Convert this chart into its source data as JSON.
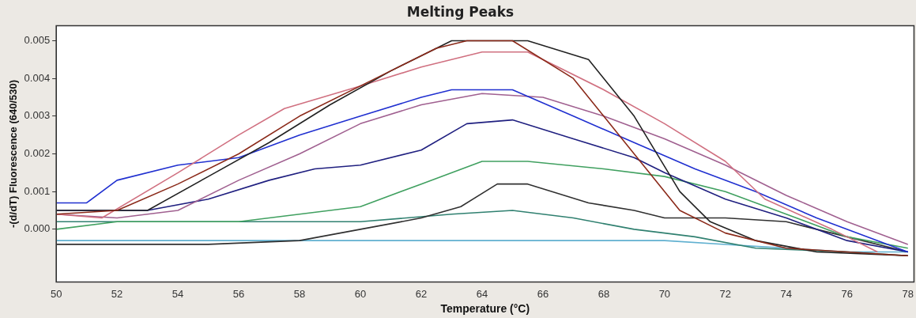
{
  "chart_data": {
    "type": "line",
    "title": "Melting Peaks",
    "xlabel": "Temperature (°C)",
    "ylabel": "-(d/dT) Fluorescence (640/530)",
    "xlim": [
      50,
      78.2
    ],
    "xticks": [
      50,
      52,
      54,
      56,
      58,
      60,
      62,
      64,
      66,
      68,
      70,
      72,
      74,
      76,
      78
    ],
    "ylim": [
      -0.0014,
      0.0054
    ],
    "yticks": [
      {
        "value": 0,
        "label": "0.000"
      },
      {
        "value": 0.001,
        "label": "0.001"
      },
      {
        "value": 0.002,
        "label": "0.002"
      },
      {
        "value": 0.003,
        "label": "0.003"
      },
      {
        "value": 0.004,
        "label": "0.004"
      },
      {
        "value": 0.005,
        "label": "0.005"
      }
    ],
    "grid": false,
    "legend": false,
    "series": [
      {
        "color": "#8b2a1a",
        "x": [
          50,
          52,
          54,
          56,
          58,
          60.5,
          62.5,
          63.5,
          65,
          67,
          69,
          70.5,
          72,
          74,
          78
        ],
        "values": [
          0.0004,
          0.0005,
          0.0012,
          0.002,
          0.003,
          0.004,
          0.0048,
          0.005,
          0.005,
          0.004,
          0.002,
          0.0005,
          -0.0001,
          -0.0005,
          -0.0007
        ]
      },
      {
        "color": "#222222",
        "x": [
          50,
          53,
          55,
          57,
          59,
          61,
          63,
          65.5,
          67.5,
          69,
          70.5,
          71.5,
          73,
          75,
          78
        ],
        "values": [
          0.0005,
          0.0005,
          0.0014,
          0.0023,
          0.0033,
          0.0042,
          0.005,
          0.005,
          0.0045,
          0.003,
          0.001,
          0.0002,
          -0.0003,
          -0.0006,
          -0.0007
        ]
      },
      {
        "color": "#d07080",
        "x": [
          50,
          51.5,
          54,
          56,
          57.5,
          60,
          62,
          64,
          65.5,
          68,
          70,
          72,
          73.3,
          75.5,
          77
        ],
        "values": [
          0.0004,
          0.0003,
          0.0015,
          0.0025,
          0.0032,
          0.0038,
          0.0043,
          0.0047,
          0.0047,
          0.0037,
          0.0028,
          0.0018,
          0.0008,
          0,
          -0.0006
        ]
      },
      {
        "color": "#2030d0",
        "x": [
          50,
          51,
          52,
          54,
          56,
          58,
          60,
          62,
          63,
          65,
          67,
          69,
          71,
          73,
          75,
          77,
          78
        ],
        "values": [
          0.0007,
          0.0007,
          0.0013,
          0.0017,
          0.0019,
          0.0025,
          0.003,
          0.0035,
          0.0037,
          0.0037,
          0.003,
          0.0023,
          0.0016,
          0.001,
          0.0003,
          -0.0003,
          -0.0006
        ]
      },
      {
        "color": "#a06090",
        "x": [
          50,
          52,
          54,
          56,
          58,
          60,
          62,
          64,
          66,
          68,
          70,
          72,
          74,
          76,
          78
        ],
        "values": [
          0.0004,
          0.0003,
          0.0005,
          0.0013,
          0.002,
          0.0028,
          0.0033,
          0.0036,
          0.0035,
          0.003,
          0.0024,
          0.0017,
          0.0009,
          0.0002,
          -0.0004
        ]
      },
      {
        "color": "#202080",
        "x": [
          50,
          53,
          55,
          57,
          58.5,
          60,
          62,
          63.5,
          65,
          67,
          69,
          70,
          72,
          74,
          76,
          78
        ],
        "values": [
          0.0005,
          0.0005,
          0.0008,
          0.0013,
          0.0016,
          0.0017,
          0.0021,
          0.0028,
          0.0029,
          0.0024,
          0.0019,
          0.0015,
          0.0008,
          0.0003,
          -0.0003,
          -0.0006
        ]
      },
      {
        "color": "#40a060",
        "x": [
          50,
          52,
          56,
          58,
          60,
          62,
          64,
          65.5,
          68,
          70,
          72,
          74,
          76,
          78
        ],
        "values": [
          0,
          0.0002,
          0.0002,
          0.0004,
          0.0006,
          0.0012,
          0.0018,
          0.0018,
          0.0016,
          0.0014,
          0.001,
          0.0004,
          -0.0002,
          -0.0005
        ]
      },
      {
        "color": "#303030",
        "x": [
          50,
          55,
          58,
          60,
          62,
          63.3,
          64.5,
          65.5,
          67.5,
          69,
          70,
          72,
          74,
          76,
          78
        ],
        "values": [
          -0.0004,
          -0.0004,
          -0.0003,
          0,
          0.0003,
          0.0006,
          0.0012,
          0.0012,
          0.0007,
          0.0005,
          0.0003,
          0.0003,
          0.0002,
          -0.0002,
          -0.0006
        ]
      },
      {
        "color": "#308070",
        "x": [
          50,
          56,
          60,
          63,
          65,
          67,
          69,
          71,
          73,
          76,
          78
        ],
        "values": [
          0.0002,
          0.0002,
          0.0002,
          0.0004,
          0.0005,
          0.0003,
          0,
          -0.0002,
          -0.0005,
          -0.0006,
          -0.0007
        ]
      },
      {
        "color": "#60b0d0",
        "x": [
          50,
          60,
          70,
          72,
          76,
          78
        ],
        "values": [
          -0.0003,
          -0.0003,
          -0.0003,
          -0.0004,
          -0.0006,
          -0.0006
        ]
      }
    ]
  }
}
